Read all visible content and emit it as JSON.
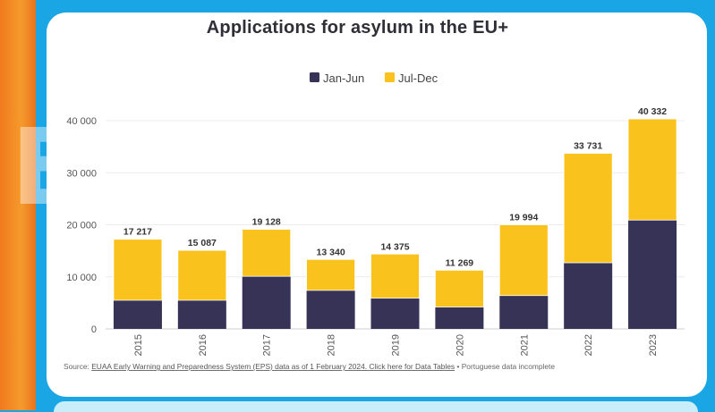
{
  "watermark": "EU",
  "chart_data": {
    "type": "bar",
    "stacked": true,
    "title": "Applications for asylum in the EU+",
    "categories": [
      "2015",
      "2016",
      "2017",
      "2018",
      "2019",
      "2020",
      "2021",
      "2022",
      "2023"
    ],
    "series": [
      {
        "name": "Jan-Jun",
        "color": "#363357",
        "values": [
          5500,
          5500,
          10100,
          7400,
          5900,
          4200,
          6400,
          12700,
          20900
        ]
      },
      {
        "name": "Jul-Dec",
        "color": "#f9c21c",
        "values": [
          11717,
          9587,
          9028,
          5940,
          8475,
          7069,
          13594,
          21031,
          19432
        ]
      }
    ],
    "totals": [
      17217,
      15087,
      19128,
      13340,
      14375,
      11269,
      19994,
      33731,
      40332
    ],
    "total_labels": [
      "17 217",
      "15 087",
      "19 128",
      "13 340",
      "14 375",
      "11 269",
      "19 994",
      "33 731",
      "40 332"
    ],
    "ylim": [
      0,
      40000
    ],
    "yticks": [
      0,
      10000,
      20000,
      30000,
      40000
    ],
    "ytick_labels": [
      "0",
      "10 000",
      "20 000",
      "30 000",
      "40 000"
    ],
    "legend": [
      "Jan-Jun",
      "Jul-Dec"
    ],
    "source_prefix": "Source: ",
    "source_link": "EUAA Early Warning and Preparedness System (EPS) data as of 1 February 2024. Click here for Data Tables",
    "source_suffix": " • Portuguese data incomplete"
  }
}
